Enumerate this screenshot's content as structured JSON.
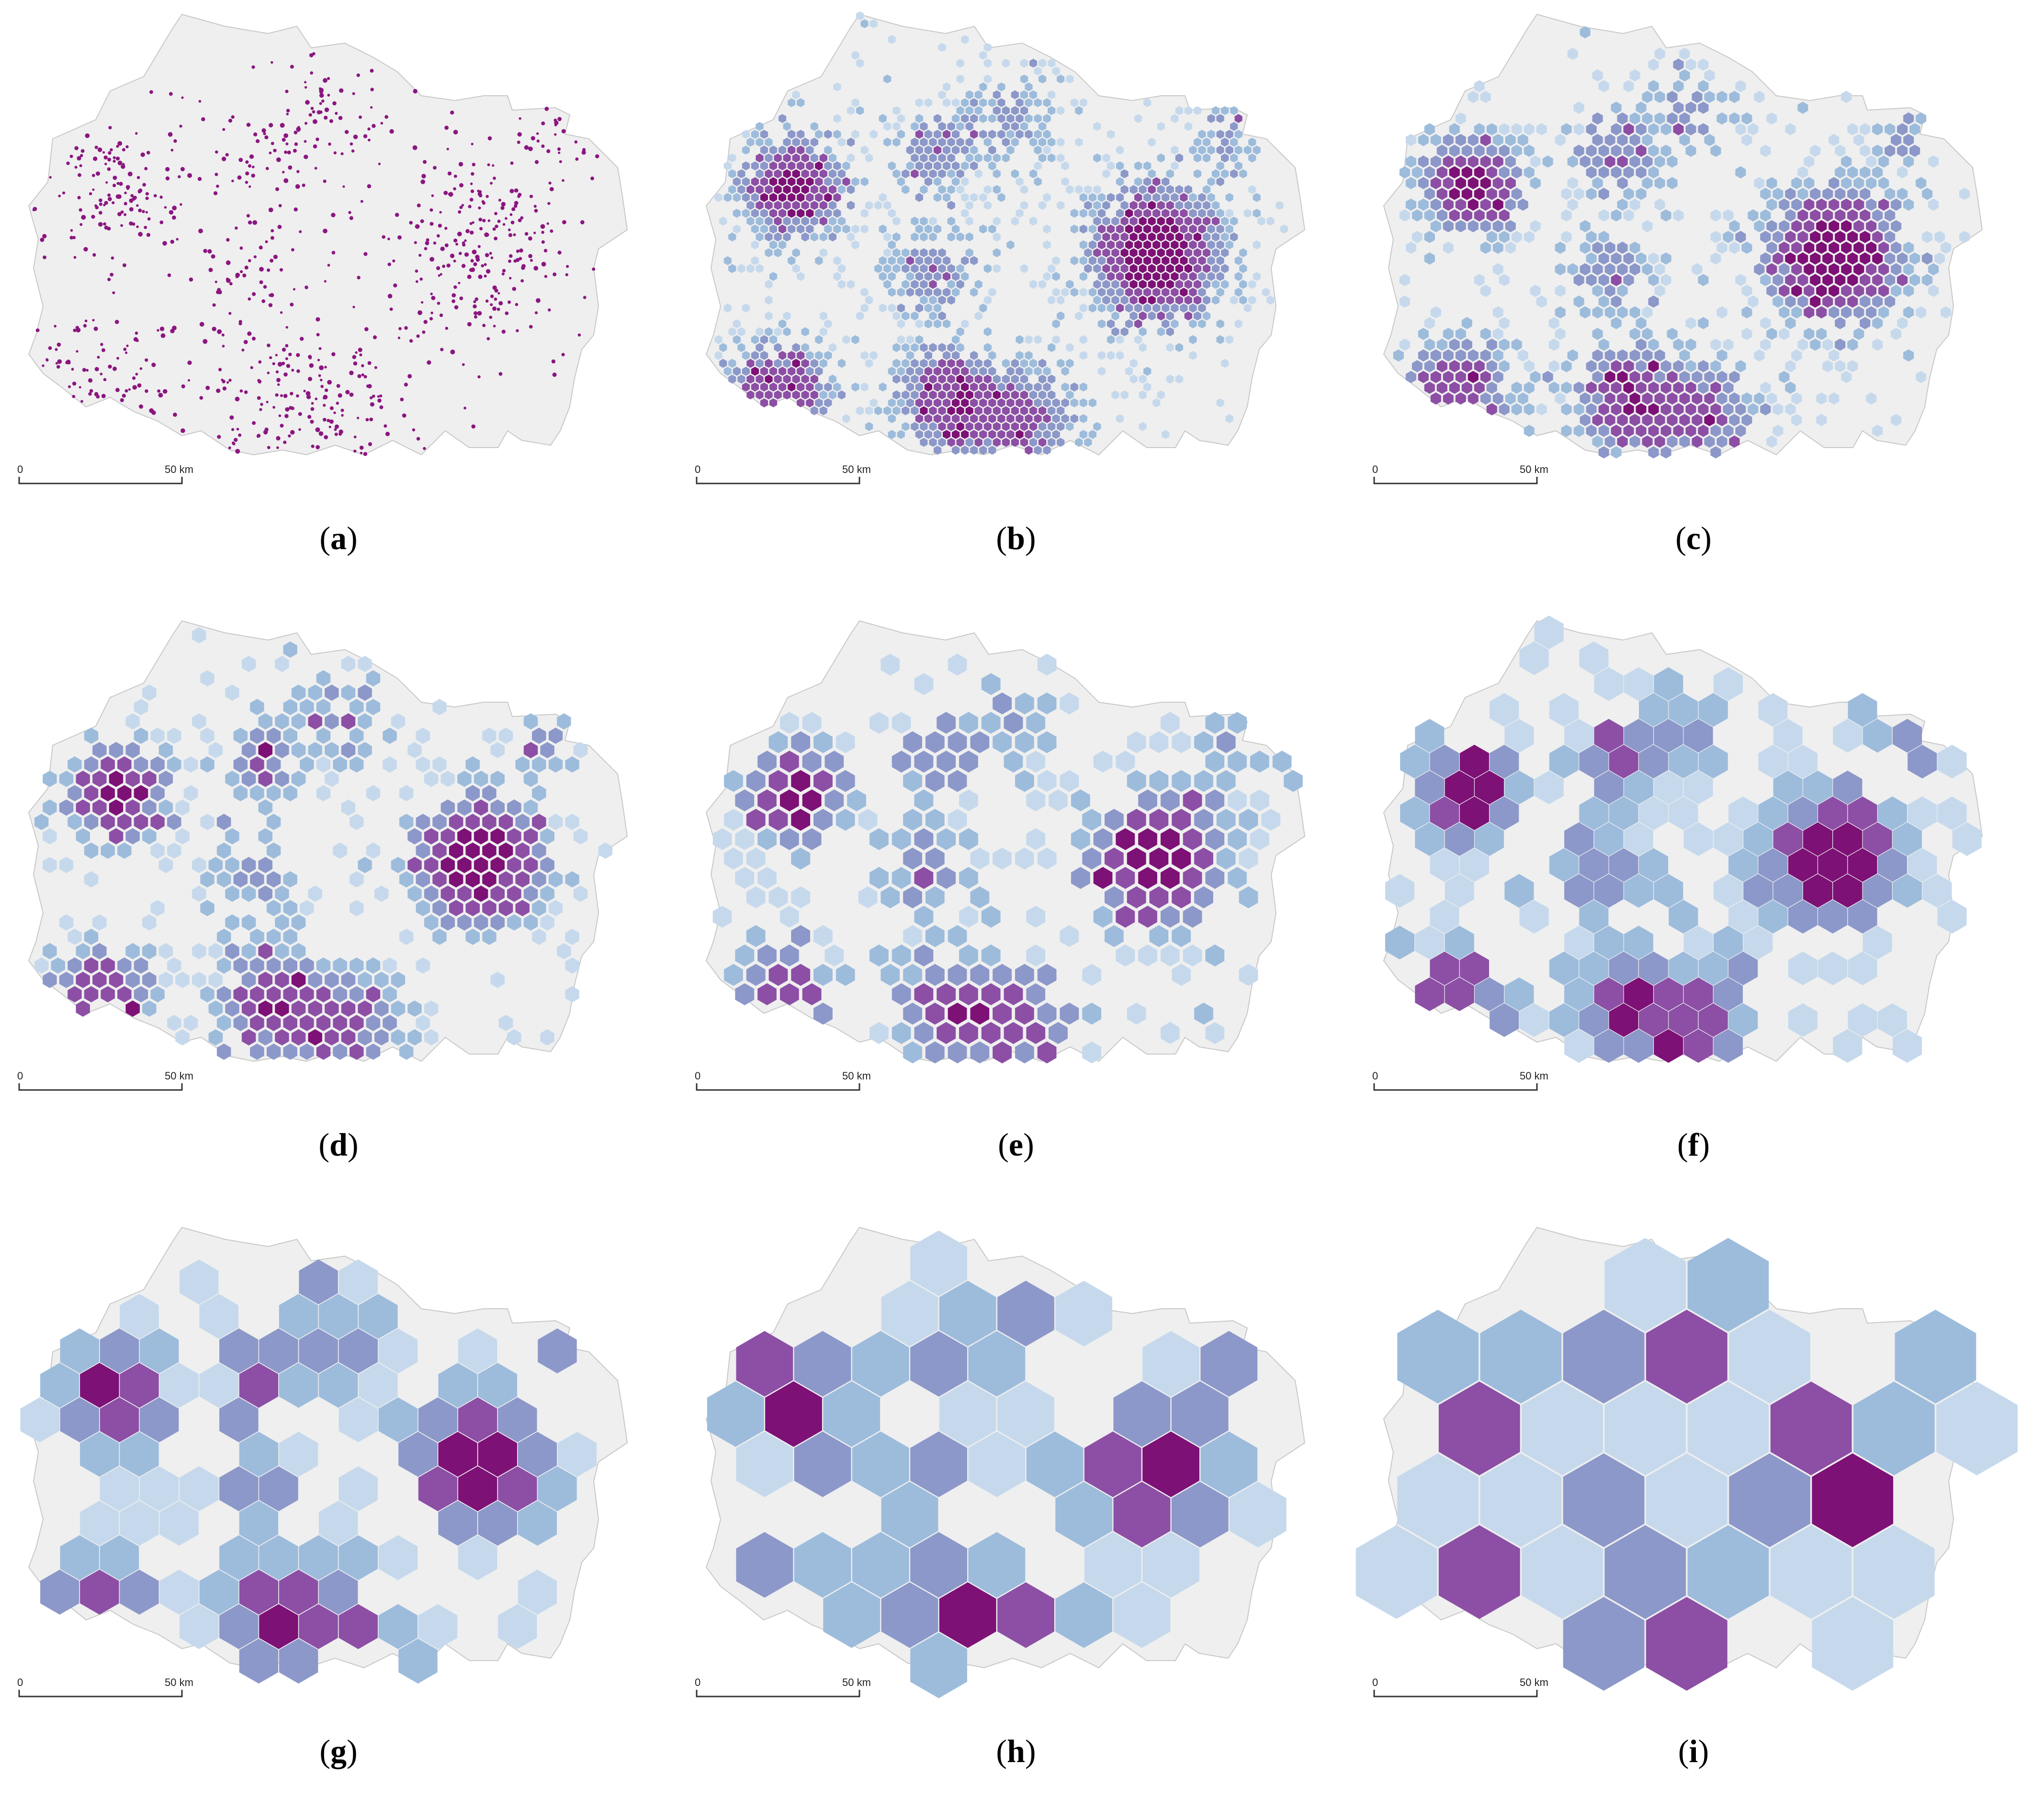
{
  "panels": [
    {
      "id": "a",
      "label_open": "(",
      "letter": "a",
      "label_close": ")",
      "style": "points",
      "cell": 0
    },
    {
      "id": "b",
      "label_open": "(",
      "letter": "b",
      "label_close": ")",
      "style": "hex",
      "cell": 11
    },
    {
      "id": "c",
      "label_open": "(",
      "letter": "c",
      "label_close": ")",
      "style": "hex",
      "cell": 15
    },
    {
      "id": "d",
      "label_open": "(",
      "letter": "d",
      "label_close": ")",
      "style": "hex",
      "cell": 20
    },
    {
      "id": "e",
      "label_open": "(",
      "letter": "e",
      "label_close": ")",
      "style": "hex",
      "cell": 27
    },
    {
      "id": "f",
      "label_open": "(",
      "letter": "f",
      "label_close": ")",
      "style": "hex",
      "cell": 36
    },
    {
      "id": "g",
      "label_open": "(",
      "letter": "g",
      "label_close": ")",
      "style": "hex",
      "cell": 48
    },
    {
      "id": "h",
      "label_open": "(",
      "letter": "h",
      "label_close": ")",
      "style": "hex",
      "cell": 70
    },
    {
      "id": "i",
      "label_open": "(",
      "letter": "i",
      "label_close": ")",
      "style": "hex",
      "cell": 100
    }
  ],
  "scale_bar": {
    "start_label": "0",
    "end_label": "50 km"
  },
  "colors": {
    "region_fill": "#efefef",
    "region_stroke": "#c8c8c8",
    "class_1": "#c6d9ec",
    "class_2": "#9dbcdc",
    "class_3": "#8c98c9",
    "class_4": "#8c4fa5",
    "class_5": "#7d1176",
    "point": "#8b1680"
  }
}
